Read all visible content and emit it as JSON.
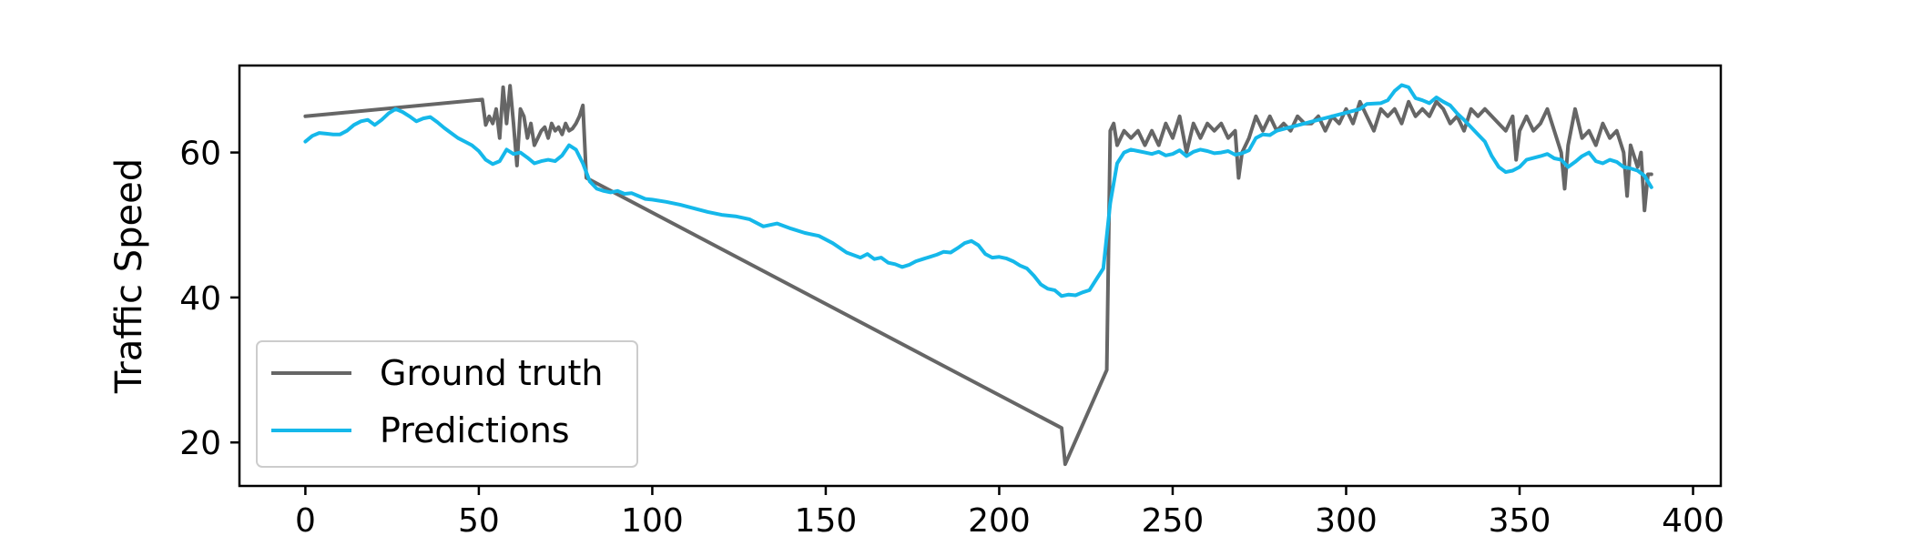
{
  "chart_data": {
    "type": "line",
    "title": "",
    "xlabel": "",
    "ylabel": "Traffic Speed",
    "xlim": [
      -19,
      408
    ],
    "ylim": [
      14,
      72
    ],
    "xticks": [
      0,
      50,
      100,
      150,
      200,
      250,
      300,
      350,
      400
    ],
    "yticks": [
      20,
      40,
      60
    ],
    "grid": false,
    "legend_position": "lower-left",
    "colors": {
      "ground_truth": "#666666",
      "predictions": "#15b8ea"
    },
    "series": [
      {
        "name": "Ground truth",
        "color": "#666666",
        "points": [
          [
            0,
            65
          ],
          [
            51,
            67.3
          ],
          [
            52,
            63.8
          ],
          [
            53,
            65
          ],
          [
            54,
            64
          ],
          [
            55,
            66
          ],
          [
            56,
            62
          ],
          [
            57,
            69
          ],
          [
            58,
            64
          ],
          [
            59,
            69.2
          ],
          [
            60,
            64
          ],
          [
            61,
            58.2
          ],
          [
            62,
            66
          ],
          [
            63,
            65
          ],
          [
            64,
            62
          ],
          [
            65,
            64
          ],
          [
            66,
            61
          ],
          [
            67,
            62
          ],
          [
            68,
            63
          ],
          [
            69,
            63.5
          ],
          [
            70,
            62
          ],
          [
            71,
            64
          ],
          [
            72,
            63
          ],
          [
            73,
            63.5
          ],
          [
            74,
            62.5
          ],
          [
            75,
            64
          ],
          [
            76,
            63
          ],
          [
            77,
            63.3
          ],
          [
            78,
            64
          ],
          [
            79,
            65
          ],
          [
            80,
            66.5
          ],
          [
            81,
            56.5
          ],
          [
            218,
            22
          ],
          [
            219,
            17
          ],
          [
            231,
            30
          ],
          [
            232,
            63
          ],
          [
            233,
            64
          ],
          [
            234,
            61
          ],
          [
            236,
            63
          ],
          [
            238,
            62
          ],
          [
            240,
            63
          ],
          [
            242,
            61
          ],
          [
            244,
            63
          ],
          [
            246,
            61
          ],
          [
            248,
            64
          ],
          [
            250,
            62
          ],
          [
            252,
            65
          ],
          [
            254,
            60
          ],
          [
            256,
            64
          ],
          [
            258,
            62
          ],
          [
            260,
            64
          ],
          [
            262,
            63
          ],
          [
            264,
            64
          ],
          [
            266,
            62
          ],
          [
            268,
            63
          ],
          [
            269,
            56.5
          ],
          [
            270,
            60
          ],
          [
            272,
            62
          ],
          [
            274,
            65
          ],
          [
            276,
            63
          ],
          [
            278,
            65
          ],
          [
            280,
            63
          ],
          [
            282,
            64
          ],
          [
            284,
            63
          ],
          [
            286,
            65
          ],
          [
            288,
            64
          ],
          [
            290,
            64
          ],
          [
            292,
            65
          ],
          [
            294,
            63
          ],
          [
            296,
            65
          ],
          [
            298,
            64
          ],
          [
            300,
            66
          ],
          [
            302,
            64
          ],
          [
            304,
            67
          ],
          [
            306,
            65
          ],
          [
            308,
            63
          ],
          [
            310,
            66
          ],
          [
            312,
            65
          ],
          [
            314,
            66
          ],
          [
            316,
            64
          ],
          [
            318,
            67
          ],
          [
            320,
            65
          ],
          [
            322,
            66
          ],
          [
            324,
            65
          ],
          [
            326,
            67
          ],
          [
            328,
            66
          ],
          [
            330,
            64
          ],
          [
            332,
            65
          ],
          [
            334,
            63
          ],
          [
            336,
            66
          ],
          [
            338,
            65
          ],
          [
            340,
            66
          ],
          [
            342,
            65
          ],
          [
            344,
            64
          ],
          [
            346,
            63
          ],
          [
            348,
            65
          ],
          [
            349,
            59
          ],
          [
            350,
            63
          ],
          [
            352,
            65
          ],
          [
            354,
            63
          ],
          [
            356,
            64
          ],
          [
            358,
            66
          ],
          [
            360,
            63
          ],
          [
            362,
            60
          ],
          [
            363,
            55
          ],
          [
            364,
            61
          ],
          [
            366,
            66
          ],
          [
            368,
            62
          ],
          [
            370,
            63
          ],
          [
            372,
            61
          ],
          [
            374,
            64
          ],
          [
            376,
            62
          ],
          [
            378,
            63
          ],
          [
            380,
            60
          ],
          [
            381,
            54
          ],
          [
            382,
            61
          ],
          [
            384,
            58
          ],
          [
            385,
            60
          ],
          [
            386,
            52
          ],
          [
            387,
            57
          ],
          [
            388,
            57
          ]
        ]
      },
      {
        "name": "Predictions",
        "color": "#15b8ea",
        "points": [
          [
            0,
            61.5
          ],
          [
            2,
            62.3
          ],
          [
            4,
            62.7
          ],
          [
            6,
            62.6
          ],
          [
            8,
            62.5
          ],
          [
            10,
            62.5
          ],
          [
            12,
            63
          ],
          [
            14,
            63.8
          ],
          [
            16,
            64.3
          ],
          [
            18,
            64.5
          ],
          [
            20,
            63.8
          ],
          [
            22,
            64.5
          ],
          [
            24,
            65.4
          ],
          [
            26,
            66
          ],
          [
            28,
            65.6
          ],
          [
            30,
            65
          ],
          [
            32,
            64.3
          ],
          [
            34,
            64.7
          ],
          [
            36,
            64.9
          ],
          [
            38,
            64.2
          ],
          [
            40,
            63.4
          ],
          [
            42,
            62.7
          ],
          [
            44,
            62
          ],
          [
            46,
            61.5
          ],
          [
            48,
            61
          ],
          [
            50,
            60.2
          ],
          [
            52,
            59
          ],
          [
            54,
            58.4
          ],
          [
            56,
            58.8
          ],
          [
            58,
            60.4
          ],
          [
            60,
            59.8
          ],
          [
            62,
            60
          ],
          [
            64,
            59.3
          ],
          [
            66,
            58.5
          ],
          [
            68,
            58.8
          ],
          [
            70,
            59
          ],
          [
            72,
            58.8
          ],
          [
            74,
            59.6
          ],
          [
            76,
            61
          ],
          [
            78,
            60.4
          ],
          [
            80,
            58.5
          ],
          [
            82,
            56
          ],
          [
            84,
            55
          ],
          [
            86,
            54.7
          ],
          [
            88,
            54.5
          ],
          [
            90,
            54.7
          ],
          [
            92,
            54.3
          ],
          [
            94,
            54.4
          ],
          [
            96,
            54
          ],
          [
            98,
            53.6
          ],
          [
            100,
            53.5
          ],
          [
            104,
            53.2
          ],
          [
            108,
            52.8
          ],
          [
            112,
            52.3
          ],
          [
            116,
            51.8
          ],
          [
            120,
            51.4
          ],
          [
            124,
            51.2
          ],
          [
            128,
            50.8
          ],
          [
            132,
            49.8
          ],
          [
            136,
            50.2
          ],
          [
            140,
            49.5
          ],
          [
            144,
            48.9
          ],
          [
            148,
            48.5
          ],
          [
            152,
            47.5
          ],
          [
            156,
            46.2
          ],
          [
            160,
            45.5
          ],
          [
            162,
            46
          ],
          [
            164,
            45.3
          ],
          [
            166,
            45.5
          ],
          [
            168,
            44.8
          ],
          [
            170,
            44.6
          ],
          [
            172,
            44.2
          ],
          [
            174,
            44.5
          ],
          [
            176,
            45
          ],
          [
            178,
            45.3
          ],
          [
            180,
            45.6
          ],
          [
            182,
            45.9
          ],
          [
            184,
            46.3
          ],
          [
            186,
            46.2
          ],
          [
            188,
            46.8
          ],
          [
            190,
            47.5
          ],
          [
            192,
            47.8
          ],
          [
            194,
            47.2
          ],
          [
            196,
            46
          ],
          [
            198,
            45.5
          ],
          [
            200,
            45.6
          ],
          [
            202,
            45.4
          ],
          [
            204,
            45
          ],
          [
            206,
            44.4
          ],
          [
            208,
            44
          ],
          [
            210,
            43
          ],
          [
            212,
            41.8
          ],
          [
            214,
            41.2
          ],
          [
            216,
            41
          ],
          [
            218,
            40.2
          ],
          [
            220,
            40.4
          ],
          [
            222,
            40.3
          ],
          [
            224,
            40.7
          ],
          [
            226,
            41
          ],
          [
            228,
            42.5
          ],
          [
            230,
            44
          ],
          [
            232,
            53
          ],
          [
            234,
            58.5
          ],
          [
            236,
            60
          ],
          [
            238,
            60.4
          ],
          [
            240,
            60.2
          ],
          [
            242,
            60
          ],
          [
            244,
            59.8
          ],
          [
            246,
            60.1
          ],
          [
            248,
            59.6
          ],
          [
            250,
            59.8
          ],
          [
            252,
            60.3
          ],
          [
            254,
            59.5
          ],
          [
            256,
            60.1
          ],
          [
            258,
            60.4
          ],
          [
            260,
            60.2
          ],
          [
            262,
            59.9
          ],
          [
            264,
            60
          ],
          [
            266,
            60.2
          ],
          [
            268,
            59.7
          ],
          [
            270,
            59.9
          ],
          [
            272,
            60.3
          ],
          [
            274,
            62
          ],
          [
            276,
            62.5
          ],
          [
            278,
            62.4
          ],
          [
            280,
            63
          ],
          [
            284,
            63.5
          ],
          [
            288,
            64
          ],
          [
            292,
            64.5
          ],
          [
            296,
            65
          ],
          [
            300,
            65.5
          ],
          [
            304,
            66
          ],
          [
            306,
            66.7
          ],
          [
            310,
            66.8
          ],
          [
            312,
            67.2
          ],
          [
            314,
            68.5
          ],
          [
            316,
            69.3
          ],
          [
            318,
            69
          ],
          [
            320,
            67.5
          ],
          [
            322,
            67.2
          ],
          [
            324,
            66.8
          ],
          [
            326,
            67.6
          ],
          [
            328,
            67
          ],
          [
            330,
            66.5
          ],
          [
            332,
            65.4
          ],
          [
            334,
            64.5
          ],
          [
            336,
            63.5
          ],
          [
            338,
            62.5
          ],
          [
            340,
            61.5
          ],
          [
            342,
            59.5
          ],
          [
            344,
            58
          ],
          [
            346,
            57.3
          ],
          [
            348,
            57.5
          ],
          [
            350,
            58
          ],
          [
            352,
            59
          ],
          [
            356,
            59.5
          ],
          [
            358,
            59.8
          ],
          [
            360,
            59.2
          ],
          [
            362,
            59
          ],
          [
            364,
            58
          ],
          [
            366,
            58.7
          ],
          [
            368,
            59.5
          ],
          [
            370,
            60
          ],
          [
            372,
            58.8
          ],
          [
            374,
            58.5
          ],
          [
            376,
            59
          ],
          [
            378,
            58.7
          ],
          [
            380,
            58
          ],
          [
            382,
            57.8
          ],
          [
            384,
            57.5
          ],
          [
            386,
            56.8
          ],
          [
            388,
            55.2
          ]
        ]
      }
    ]
  }
}
